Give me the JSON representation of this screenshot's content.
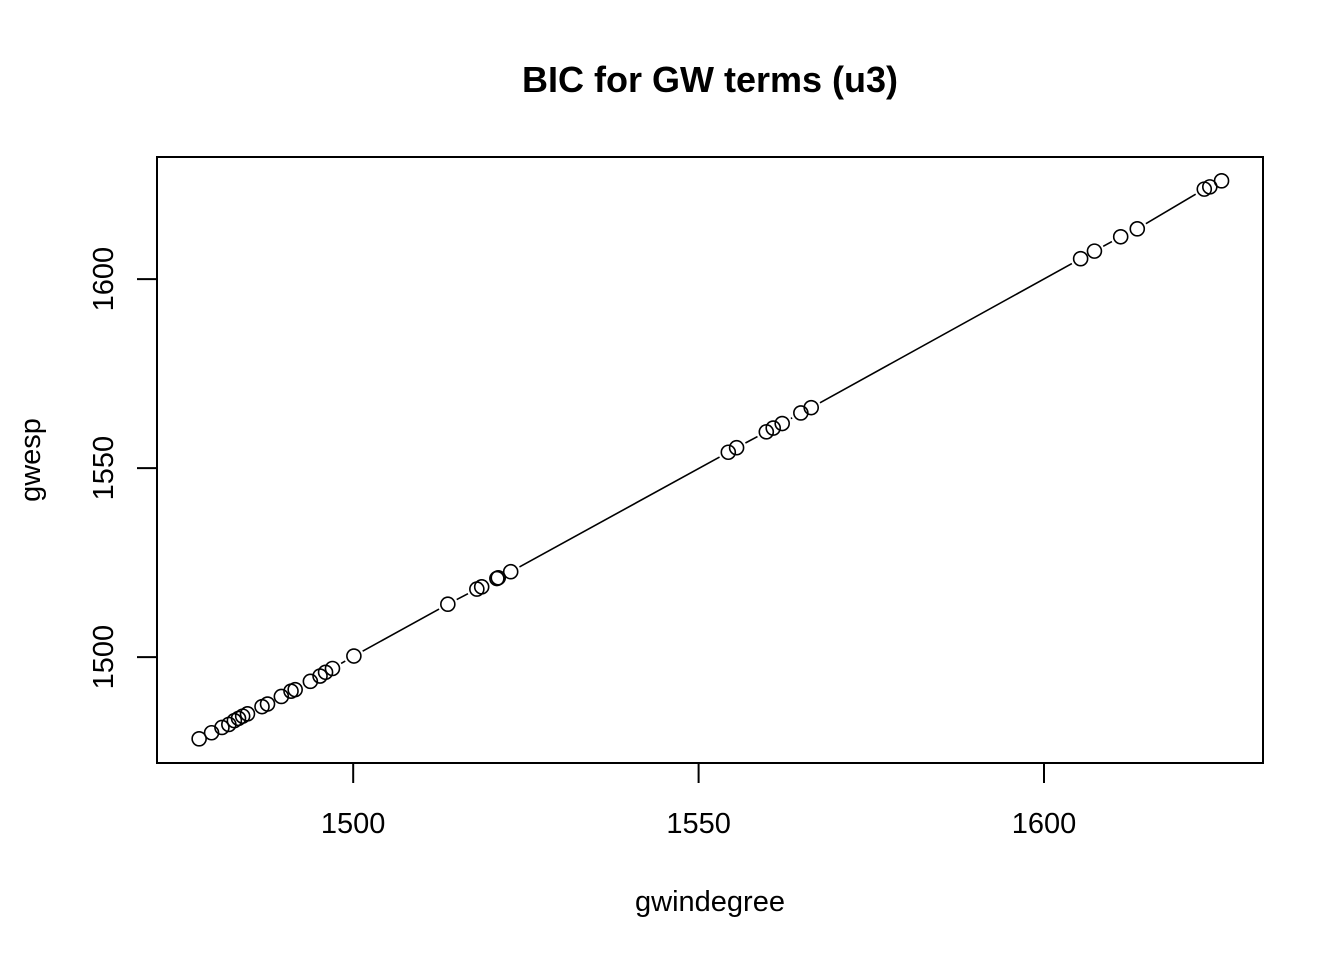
{
  "chart_data": {
    "type": "scatter",
    "title": "BIC for GW terms (u3)",
    "xlabel": "gwindegree",
    "ylabel": "gwesp",
    "xlim": [
      1471.6,
      1631.7
    ],
    "ylim": [
      1472.0,
      1632.3
    ],
    "x_ticks": [
      1500,
      1550,
      1600
    ],
    "y_ticks": [
      1500,
      1550,
      1600
    ],
    "x_tick_labels": [
      "1500",
      "1550",
      "1600"
    ],
    "y_tick_labels": [
      "1500",
      "1550",
      "1600"
    ],
    "grid": false,
    "legend": "none",
    "connecting_line": true,
    "marker": "open-circle",
    "points": [
      {
        "x": 1477.7,
        "y": 1478.4
      },
      {
        "x": 1479.5,
        "y": 1480.0
      },
      {
        "x": 1481.0,
        "y": 1481.4
      },
      {
        "x": 1482.0,
        "y": 1482.2
      },
      {
        "x": 1482.8,
        "y": 1483.2
      },
      {
        "x": 1483.4,
        "y": 1483.8
      },
      {
        "x": 1484.0,
        "y": 1484.4
      },
      {
        "x": 1484.7,
        "y": 1485.0
      },
      {
        "x": 1486.8,
        "y": 1486.9
      },
      {
        "x": 1487.6,
        "y": 1487.6
      },
      {
        "x": 1489.6,
        "y": 1489.6
      },
      {
        "x": 1491.0,
        "y": 1491.0
      },
      {
        "x": 1491.6,
        "y": 1491.4
      },
      {
        "x": 1493.8,
        "y": 1493.6
      },
      {
        "x": 1495.2,
        "y": 1495.0
      },
      {
        "x": 1496.0,
        "y": 1496.0
      },
      {
        "x": 1497.0,
        "y": 1497.0
      },
      {
        "x": 1500.1,
        "y": 1500.3
      },
      {
        "x": 1513.7,
        "y": 1514.0
      },
      {
        "x": 1517.9,
        "y": 1518.0
      },
      {
        "x": 1518.6,
        "y": 1518.6
      },
      {
        "x": 1520.8,
        "y": 1520.8
      },
      {
        "x": 1521.0,
        "y": 1521.0
      },
      {
        "x": 1522.8,
        "y": 1522.6
      },
      {
        "x": 1554.3,
        "y": 1554.2
      },
      {
        "x": 1555.5,
        "y": 1555.4
      },
      {
        "x": 1559.8,
        "y": 1559.6
      },
      {
        "x": 1560.8,
        "y": 1560.6
      },
      {
        "x": 1562.1,
        "y": 1561.8
      },
      {
        "x": 1564.8,
        "y": 1564.6
      },
      {
        "x": 1566.3,
        "y": 1566.0
      },
      {
        "x": 1605.3,
        "y": 1605.4
      },
      {
        "x": 1607.3,
        "y": 1607.4
      },
      {
        "x": 1611.1,
        "y": 1611.2
      },
      {
        "x": 1613.5,
        "y": 1613.3
      },
      {
        "x": 1623.2,
        "y": 1623.8
      },
      {
        "x": 1624.0,
        "y": 1624.4
      },
      {
        "x": 1625.7,
        "y": 1626.0
      }
    ]
  }
}
